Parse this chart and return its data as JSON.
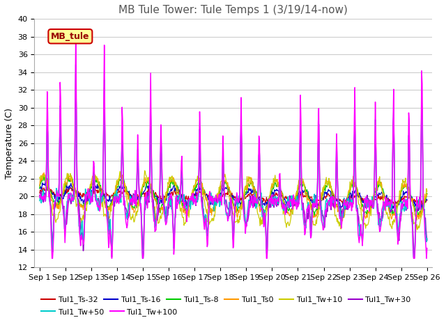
{
  "title": "MB Tule Tower: Tule Temps 1 (3/19/14-now)",
  "ylabel": "Temperature (C)",
  "ylim": [
    12,
    40
  ],
  "yticks": [
    12,
    14,
    16,
    18,
    20,
    22,
    24,
    26,
    28,
    30,
    32,
    34,
    36,
    38,
    40
  ],
  "x_tick_positions": [
    0,
    1,
    2,
    3,
    4,
    5,
    6,
    7,
    8,
    9,
    10,
    11,
    12,
    13,
    14,
    15
  ],
  "x_tick_labels": [
    "Sep 1",
    "Sep 12",
    "Sep 13",
    "Sep 14",
    "Sep 15",
    "Sep 16",
    "Sep 17",
    "Sep 18",
    "Sep 19",
    "Sep 20",
    "Sep 21",
    "Sep 22",
    "Sep 23",
    "Sep 24",
    "Sep 25",
    "Sep 26"
  ],
  "series_colors": {
    "Tul1_Ts-32": "#cc0000",
    "Tul1_Ts-16": "#0000cc",
    "Tul1_Ts-8": "#00cc00",
    "Tul1_Ts0": "#ff9900",
    "Tul1_Tw+10": "#cccc00",
    "Tul1_Tw+30": "#9900cc",
    "Tul1_Tw+50": "#00cccc",
    "Tul1_Tw+100": "#ff00ff"
  },
  "legend_box_facecolor": "#ffff99",
  "legend_box_edgecolor": "#cc0000",
  "legend_box_label": "MB_tule",
  "legend_box_label_color": "#990000",
  "background_color": "#ffffff",
  "grid_color": "#cccccc",
  "title_color": "#555555",
  "title_fontsize": 11,
  "axis_label_fontsize": 9,
  "tick_fontsize": 8,
  "legend_fontsize": 8
}
